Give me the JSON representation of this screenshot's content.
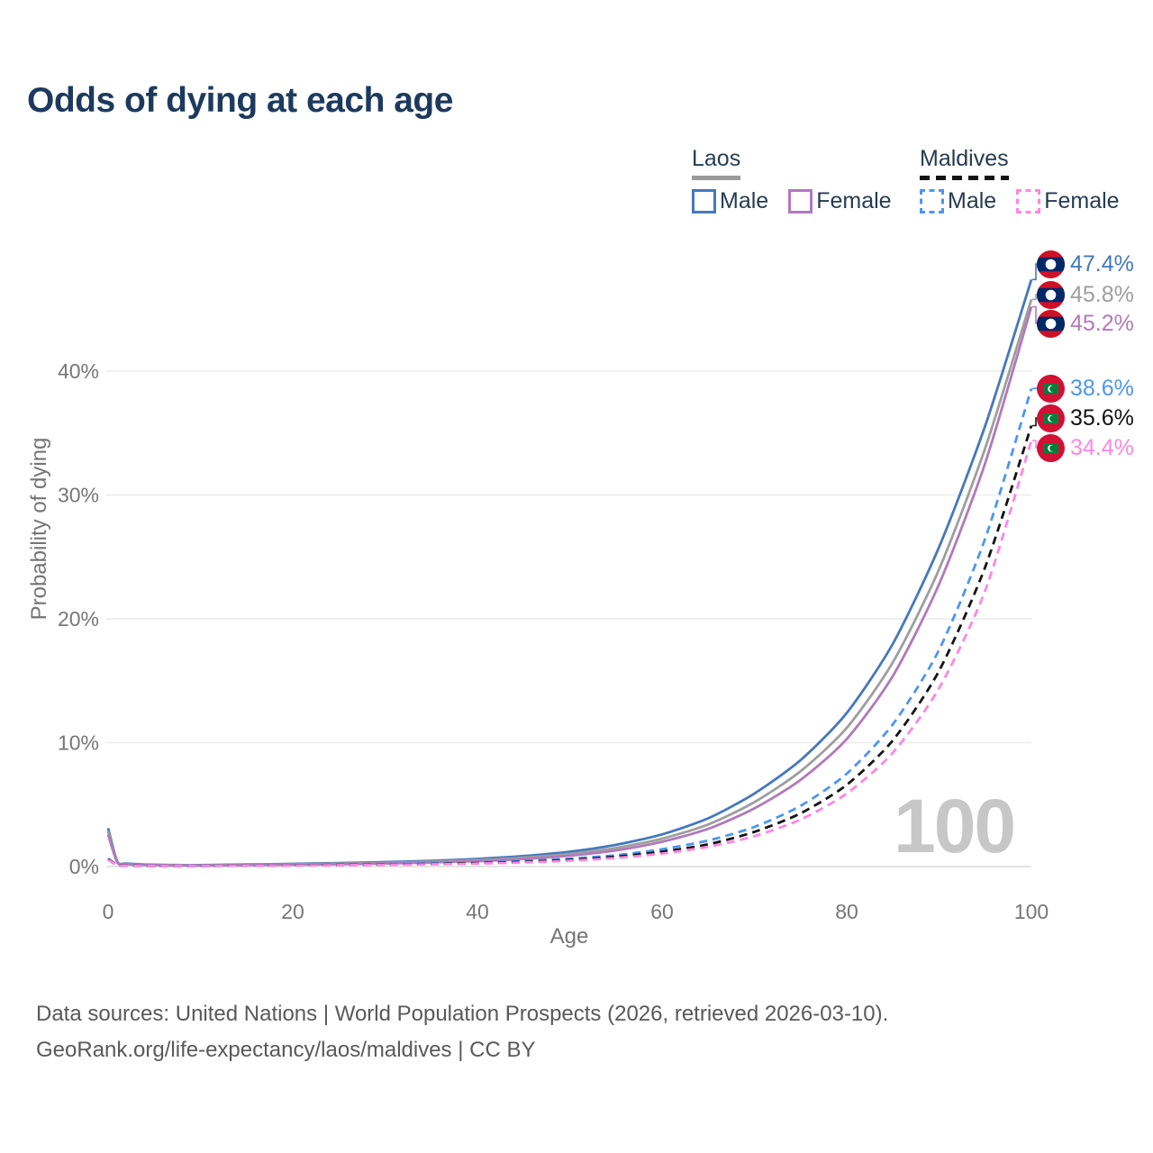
{
  "title": "Odds of dying at each age",
  "legend": {
    "groups": [
      {
        "name": "Laos",
        "line_style": "solid",
        "rule_color": "#9a9a9a",
        "items": [
          {
            "label": "Male",
            "color": "#4478bd"
          },
          {
            "label": "Female",
            "color": "#b378bc"
          }
        ]
      },
      {
        "name": "Maldives",
        "line_style": "dashed",
        "rule_color": "#141414",
        "items": [
          {
            "label": "Male",
            "color": "#4b96f3"
          },
          {
            "label": "Female",
            "color": "#ff86e3"
          }
        ]
      }
    ]
  },
  "watermark_age": "100",
  "footer": {
    "line1": "Data sources: United Nations | World Population Prospects (2026, retrieved 2026-03-10).",
    "line2": "GeoRank.org/life-expectancy/laos/maldives | CC BY"
  },
  "chart_data": {
    "type": "line",
    "title": "Odds of dying at each age",
    "xlabel": "Age",
    "ylabel": "Probability of dying",
    "xlim": [
      0,
      100
    ],
    "ylim": [
      0,
      47.5
    ],
    "grid": "horizontal",
    "legend_position": "top-right",
    "xticks": [
      {
        "label": "0",
        "value": 0
      },
      {
        "label": "20",
        "value": 20
      },
      {
        "label": "40",
        "value": 40
      },
      {
        "label": "60",
        "value": 60
      },
      {
        "label": "80",
        "value": 80
      },
      {
        "label": "100",
        "value": 100
      }
    ],
    "yticks": [
      {
        "label": "0%",
        "value": 0
      },
      {
        "label": "10%",
        "value": 10
      },
      {
        "label": "20%",
        "value": 20
      },
      {
        "label": "30%",
        "value": 30
      },
      {
        "label": "40%",
        "value": 40
      }
    ],
    "ages": [
      0,
      1,
      2,
      5,
      10,
      15,
      20,
      25,
      30,
      35,
      40,
      45,
      50,
      55,
      60,
      65,
      70,
      75,
      80,
      85,
      90,
      95,
      100
    ],
    "series": [
      {
        "id": "laos-male",
        "country": "Laos",
        "sex": "Male",
        "color": "#4478bd",
        "dashed": false,
        "values": [
          3.1,
          0.4,
          0.25,
          0.15,
          0.12,
          0.17,
          0.22,
          0.28,
          0.36,
          0.46,
          0.62,
          0.85,
          1.2,
          1.75,
          2.6,
          3.9,
          5.9,
          8.6,
          12.4,
          18.0,
          25.8,
          35.6,
          47.4
        ],
        "end_label": {
          "text": "47.4%",
          "flag": "laos"
        }
      },
      {
        "id": "laos-both",
        "country": "Laos",
        "sex": "Both",
        "color": "#9e9e9e",
        "dashed": false,
        "values": [
          2.85,
          0.36,
          0.22,
          0.13,
          0.1,
          0.14,
          0.18,
          0.23,
          0.3,
          0.39,
          0.52,
          0.72,
          1.02,
          1.5,
          2.25,
          3.4,
          5.2,
          7.7,
          11.2,
          16.5,
          24.0,
          33.8,
          45.8
        ],
        "end_label": {
          "text": "45.8%",
          "flag": "laos"
        }
      },
      {
        "id": "laos-female",
        "country": "Laos",
        "sex": "Female",
        "color": "#b378bc",
        "dashed": false,
        "values": [
          2.6,
          0.32,
          0.2,
          0.12,
          0.09,
          0.12,
          0.15,
          0.19,
          0.25,
          0.33,
          0.44,
          0.61,
          0.88,
          1.3,
          2.0,
          3.05,
          4.7,
          7.0,
          10.3,
          15.4,
          22.8,
          32.6,
          45.2
        ],
        "end_label": {
          "text": "45.2%",
          "flag": "laos"
        }
      },
      {
        "id": "maldives-male",
        "country": "Maldives",
        "sex": "Male",
        "color": "#4b96f3",
        "dashed": true,
        "values": [
          0.65,
          0.12,
          0.08,
          0.06,
          0.06,
          0.09,
          0.12,
          0.15,
          0.19,
          0.25,
          0.33,
          0.45,
          0.63,
          0.92,
          1.4,
          2.1,
          3.2,
          4.9,
          7.5,
          11.5,
          17.5,
          26.5,
          38.6
        ],
        "end_label": {
          "text": "38.6%",
          "flag": "maldives"
        }
      },
      {
        "id": "maldives-both",
        "country": "Maldives",
        "sex": "Both",
        "color": "#141414",
        "dashed": true,
        "values": [
          0.6,
          0.11,
          0.07,
          0.05,
          0.05,
          0.08,
          0.1,
          0.13,
          0.16,
          0.21,
          0.28,
          0.38,
          0.54,
          0.79,
          1.2,
          1.8,
          2.8,
          4.3,
          6.6,
          10.2,
          15.8,
          24.2,
          35.6
        ],
        "end_label": {
          "text": "35.6%",
          "flag": "maldives"
        }
      },
      {
        "id": "maldives-female",
        "country": "Maldives",
        "sex": "Female",
        "color": "#ff86e3",
        "dashed": true,
        "values": [
          0.55,
          0.1,
          0.06,
          0.05,
          0.05,
          0.07,
          0.09,
          0.11,
          0.14,
          0.18,
          0.24,
          0.33,
          0.47,
          0.69,
          1.05,
          1.6,
          2.45,
          3.8,
          5.9,
          9.2,
          14.4,
          22.3,
          34.4
        ],
        "end_label": {
          "text": "34.4%",
          "flag": "maldives"
        }
      }
    ]
  }
}
